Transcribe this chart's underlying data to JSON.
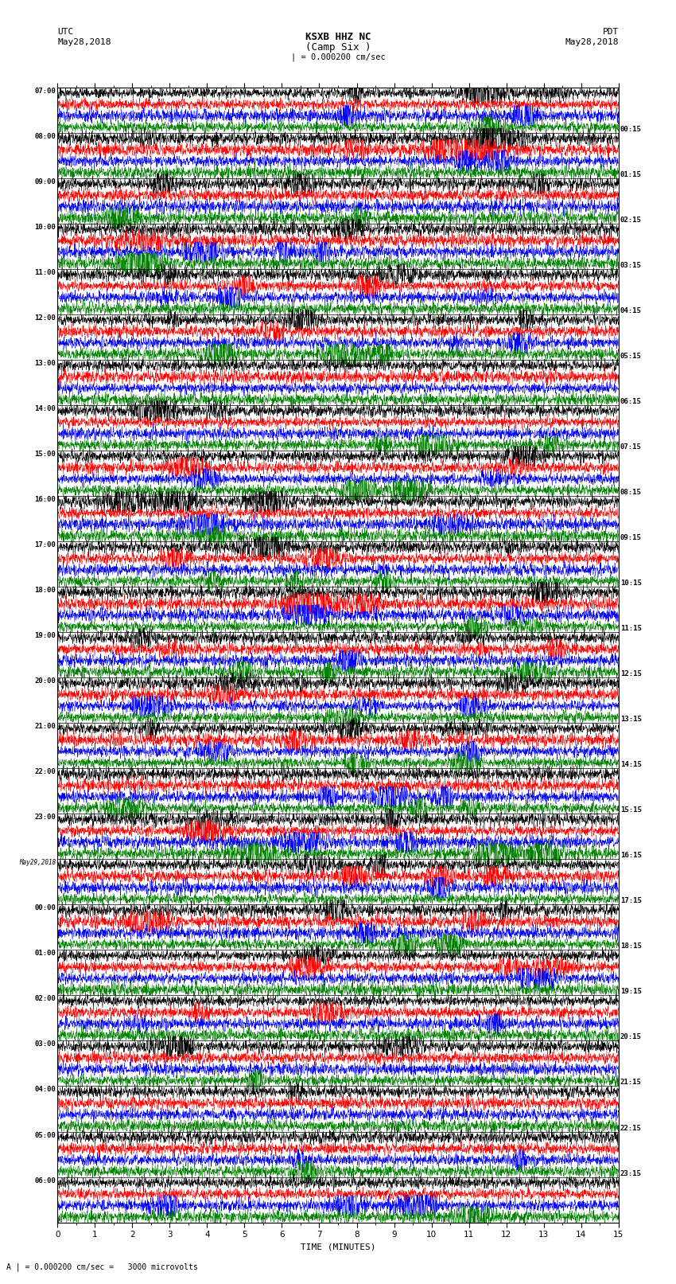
{
  "title_line1": "KSXB HHZ NC",
  "title_line2": "(Camp Six )",
  "scale_bar": "| = 0.000200 cm/sec",
  "utc_label": "UTC",
  "utc_date": "May28,2018",
  "pdt_label": "PDT",
  "pdt_date": "May28,2018",
  "xlabel": "TIME (MINUTES)",
  "footnote": "A | = 0.000200 cm/sec =   3000 microvolts",
  "left_times": [
    "07:00",
    "08:00",
    "09:00",
    "10:00",
    "11:00",
    "12:00",
    "13:00",
    "14:00",
    "15:00",
    "16:00",
    "17:00",
    "18:00",
    "19:00",
    "20:00",
    "21:00",
    "22:00",
    "23:00",
    "May29,2018",
    "00:00",
    "01:00",
    "02:00",
    "03:00",
    "04:00",
    "05:00",
    "06:00"
  ],
  "right_times": [
    "00:15",
    "01:15",
    "02:15",
    "03:15",
    "04:15",
    "05:15",
    "06:15",
    "07:15",
    "08:15",
    "09:15",
    "10:15",
    "11:15",
    "12:15",
    "13:15",
    "14:15",
    "15:15",
    "16:15",
    "17:15",
    "18:15",
    "19:15",
    "20:15",
    "21:15",
    "22:15",
    "23:15"
  ],
  "trace_colors": [
    "black",
    "red",
    "blue",
    "green"
  ],
  "n_rows": 25,
  "traces_per_row": 4,
  "minutes_per_row": 15,
  "fig_width": 8.5,
  "fig_height": 16.13,
  "bg_color": "white",
  "trace_lw": 0.35,
  "amplitude_scale": 0.28,
  "n_pts": 2700
}
